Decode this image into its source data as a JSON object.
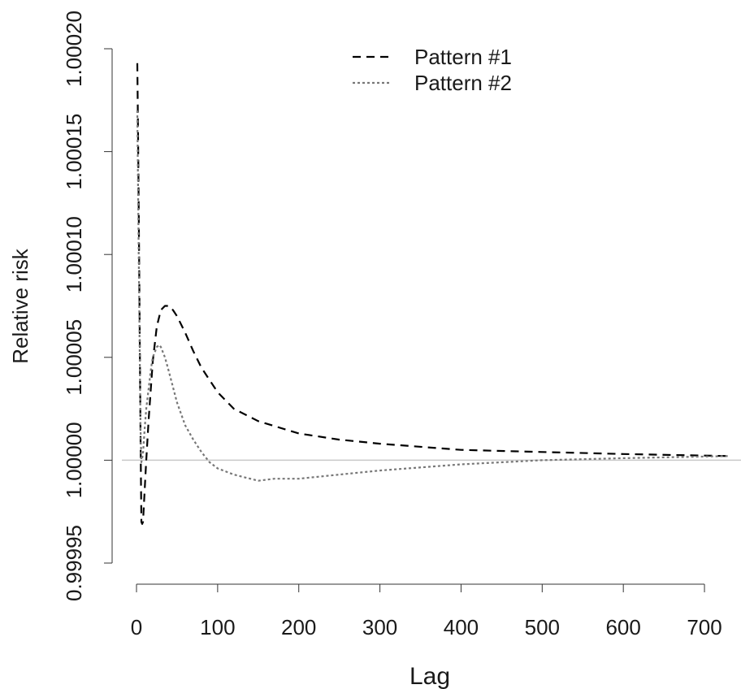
{
  "chart_data": {
    "type": "line",
    "title": "",
    "xlabel": "Lag",
    "ylabel": "Relative risk",
    "xlim": [
      0,
      730
    ],
    "ylim": [
      0.99995,
      1.0002
    ],
    "x_ticks": [
      0,
      100,
      200,
      300,
      400,
      500,
      600,
      700
    ],
    "x_tick_labels": [
      "0",
      "100",
      "200",
      "300",
      "400",
      "500",
      "600",
      "700"
    ],
    "y_ticks": [
      0.99995,
      1.0,
      1.00005,
      1.0001,
      1.00015,
      1.0002
    ],
    "y_tick_labels": [
      "0.99995",
      "1.00000",
      "1.00005",
      "1.00010",
      "1.00015",
      "1.00020"
    ],
    "reference_line_y": 1.0,
    "legend_position": "top",
    "series": [
      {
        "name": "Pattern #1",
        "style": "dashed",
        "color": "#000000",
        "x": [
          1,
          2,
          3,
          4,
          5,
          6,
          7,
          8,
          10,
          12,
          15,
          20,
          25,
          30,
          35,
          40,
          45,
          50,
          60,
          70,
          80,
          100,
          120,
          150,
          200,
          250,
          300,
          400,
          500,
          600,
          730
        ],
        "y": [
          1.000193,
          1.000155,
          1.00011,
          1.00006,
          1.00001,
          0.99997,
          0.999969,
          0.99997,
          0.999985,
          1.0,
          1.00002,
          1.000048,
          1.000065,
          1.000073,
          1.000075,
          1.000075,
          1.000073,
          1.00007,
          1.000062,
          1.000053,
          1.000045,
          1.000033,
          1.000025,
          1.000019,
          1.000013,
          1.00001,
          1.000008,
          1.000005,
          1.000004,
          1.000003,
          1.000002
        ]
      },
      {
        "name": "Pattern #2",
        "style": "dotted",
        "color": "#777777",
        "x": [
          1,
          2,
          3,
          4,
          5,
          6,
          8,
          10,
          12,
          15,
          18,
          20,
          25,
          28,
          30,
          35,
          40,
          50,
          60,
          70,
          80,
          90,
          100,
          120,
          150,
          170,
          200,
          250,
          300,
          400,
          500,
          600,
          730
        ],
        "y": [
          1.00017,
          1.00013,
          1.00009,
          1.00005,
          1.000015,
          0.999999,
          1.000003,
          1.000015,
          1.000025,
          1.000035,
          1.000045,
          1.00005,
          1.000055,
          1.000056,
          1.000055,
          1.00005,
          1.000043,
          1.000028,
          1.000017,
          1.00001,
          1.000004,
          0.999999,
          0.999996,
          0.999993,
          0.99999,
          0.999991,
          0.999991,
          0.999993,
          0.999995,
          0.999998,
          1.0,
          1.000001,
          1.000002
        ]
      }
    ]
  }
}
